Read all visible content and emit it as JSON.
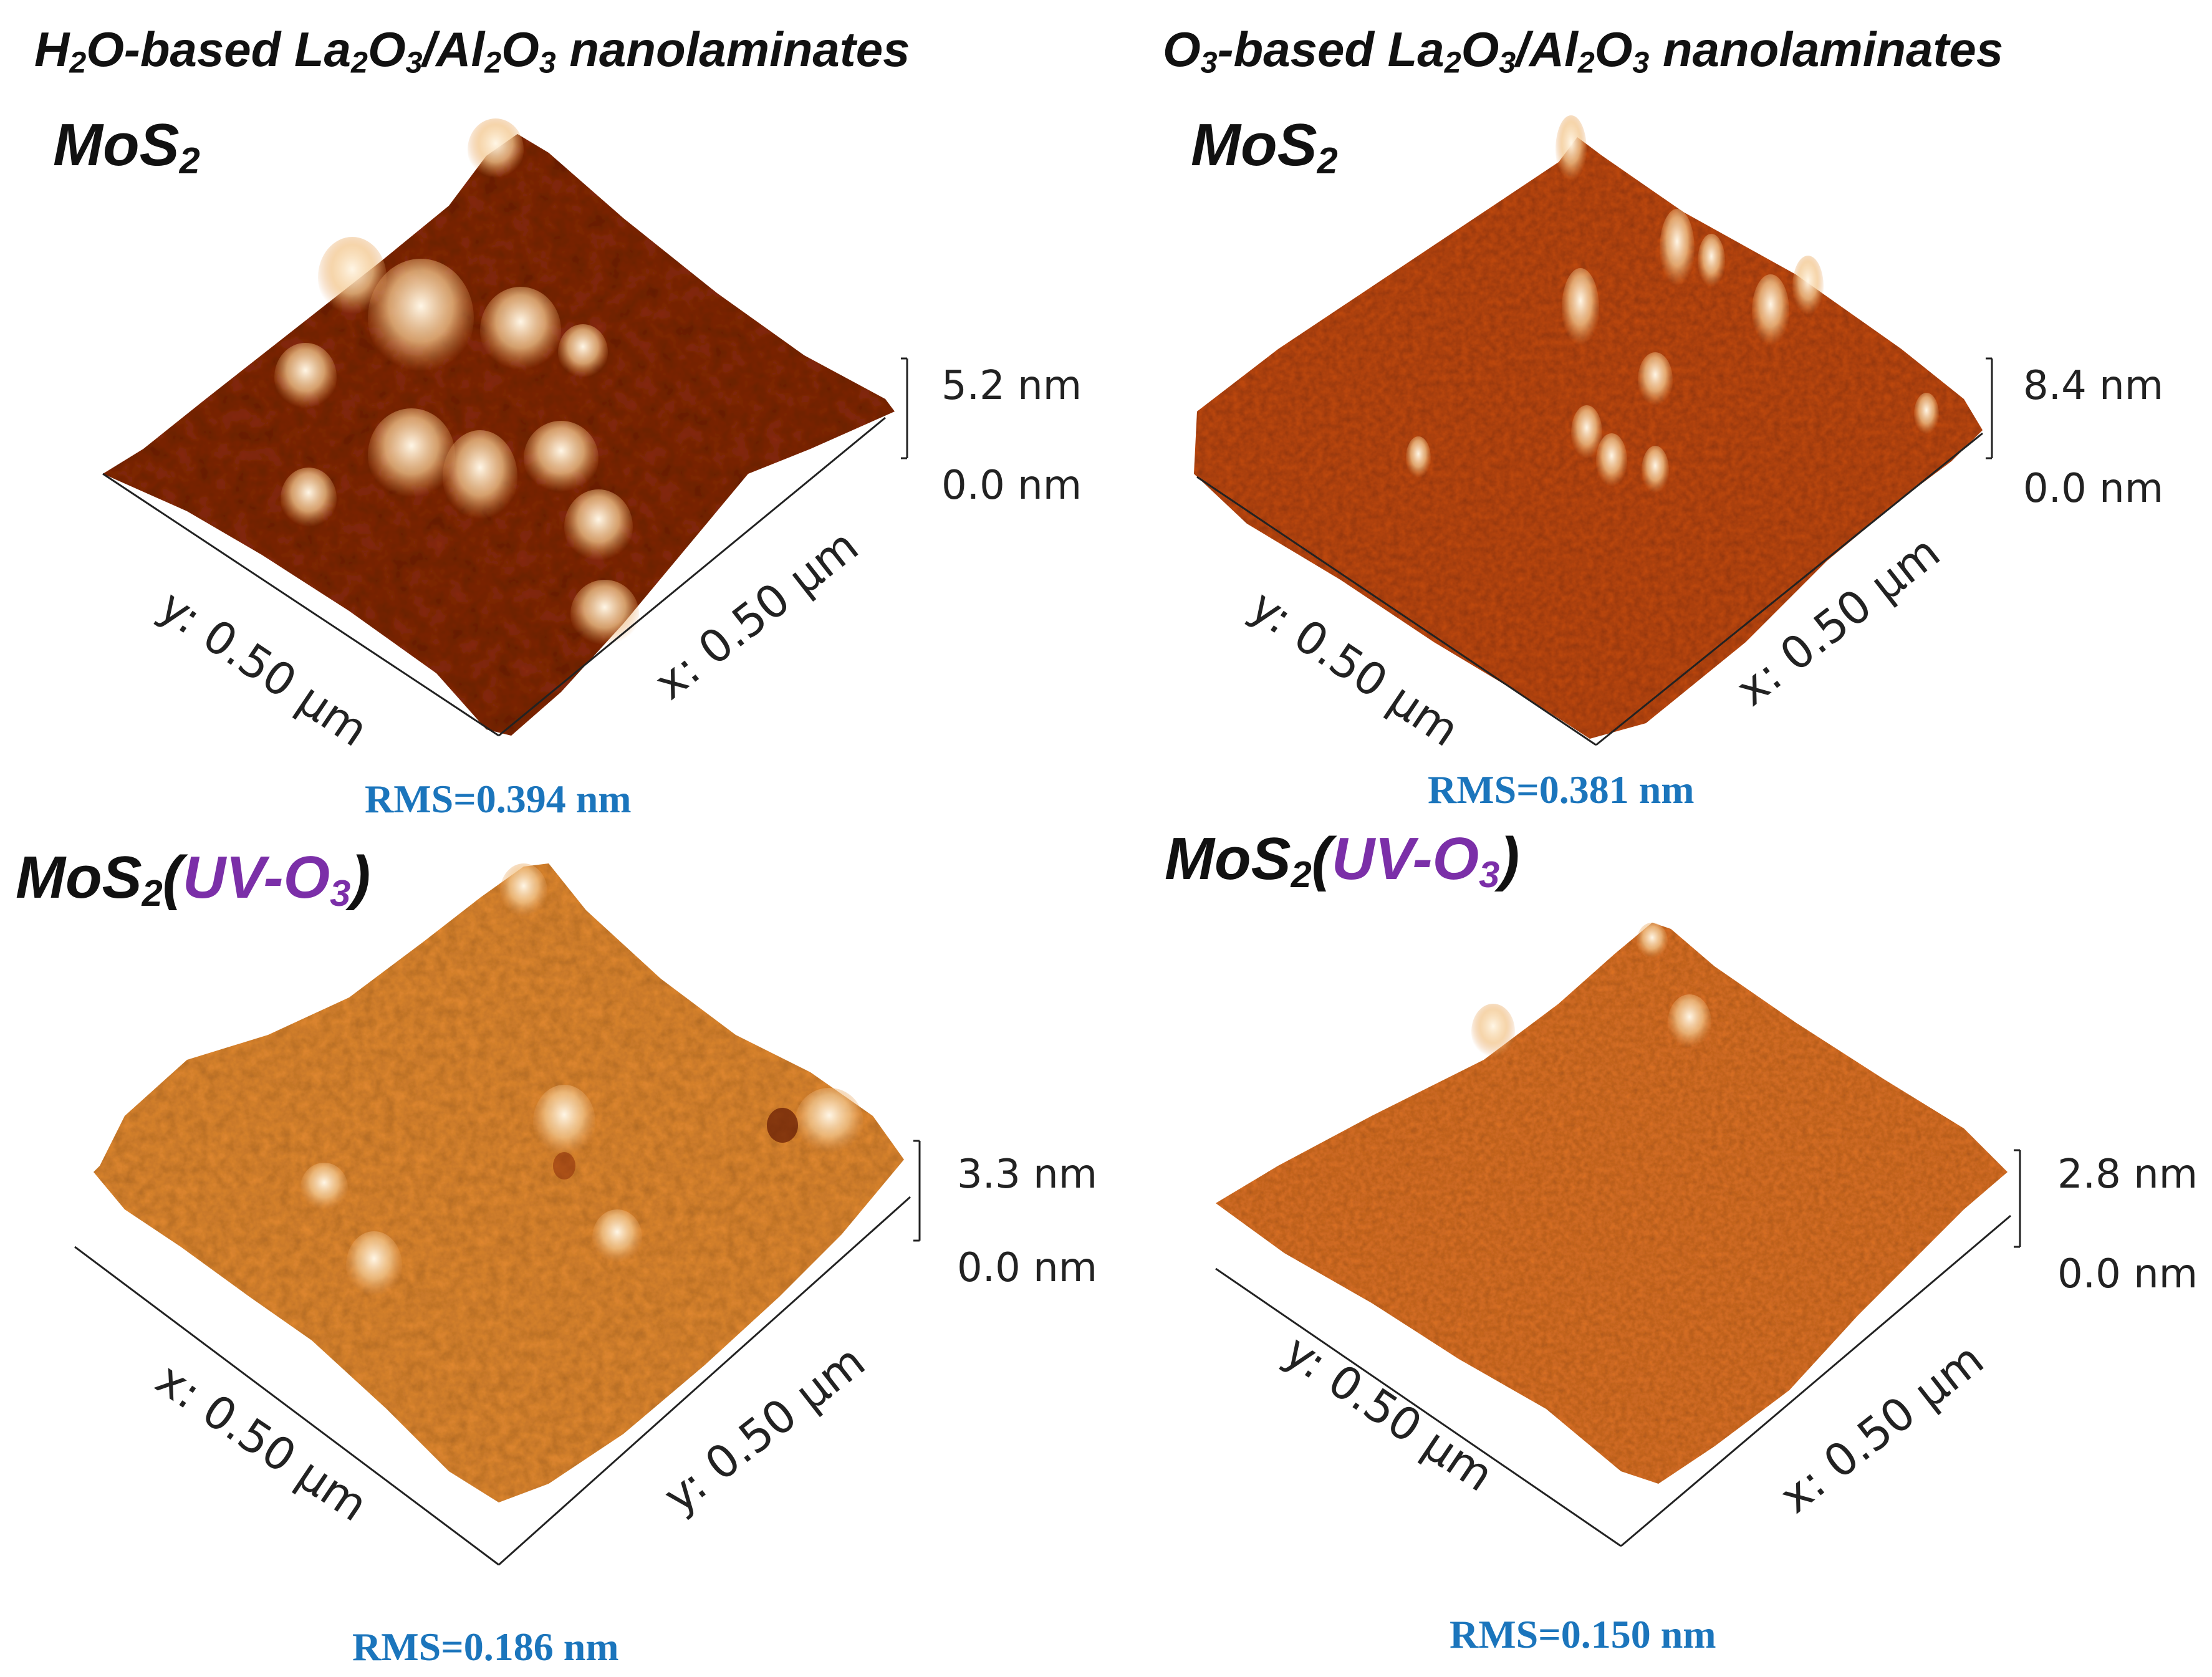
{
  "columns": {
    "left_heading_pre": "H",
    "left_heading_sub1": "2",
    "left_heading_mid1": "O-based La",
    "left_heading_sub2": "2",
    "left_heading_mid2": "O",
    "left_heading_sub3": "3",
    "left_heading_mid3": "/Al",
    "left_heading_sub4": "2",
    "left_heading_mid4": "O",
    "left_heading_sub5": "3",
    "left_heading_end": " nanolaminates",
    "right_heading_pre": "O",
    "right_heading_sub1": "3",
    "right_heading_mid1": "-based La",
    "right_heading_sub2": "2",
    "right_heading_mid2": "O",
    "right_heading_sub3": "3",
    "right_heading_mid3": "/Al",
    "right_heading_sub4": "2",
    "right_heading_mid4": "O",
    "right_heading_sub5": "3",
    "right_heading_end": " nanolaminates"
  },
  "label_parts": {
    "mos": "MoS",
    "two": "2",
    "open": "(",
    "uv": "UV-O",
    "three": "3",
    "close": ")"
  },
  "panels": [
    {
      "scale_max": "5.2 nm",
      "scale_min": "0.0 nm",
      "axis_left": "y: 0.50 µm",
      "axis_right": "x: 0.50 µm",
      "rms": "RMS=0.394 nm",
      "palette": [
        "#8a2a08",
        "#f7d8a8"
      ]
    },
    {
      "scale_max": "8.4 nm",
      "scale_min": "0.0 nm",
      "axis_left": "y: 0.50 µm",
      "axis_right": "x: 0.50 µm",
      "rms": "RMS=0.381 nm",
      "palette": [
        "#c34a12",
        "#fbe2b8"
      ]
    },
    {
      "scale_max": "3.3 nm",
      "scale_min": "0.0 nm",
      "axis_left": "x: 0.50 µm",
      "axis_right": "y: 0.50 µm",
      "rms": "RMS=0.186 nm",
      "palette": [
        "#e48a30",
        "#fdf0d6"
      ]
    },
    {
      "scale_max": "2.8 nm",
      "scale_min": "0.0 nm",
      "axis_left": "y: 0.50 µm",
      "axis_right": "x: 0.50 µm",
      "rms": "RMS=0.150 nm",
      "palette": [
        "#de7224",
        "#f7c07c"
      ]
    }
  ]
}
